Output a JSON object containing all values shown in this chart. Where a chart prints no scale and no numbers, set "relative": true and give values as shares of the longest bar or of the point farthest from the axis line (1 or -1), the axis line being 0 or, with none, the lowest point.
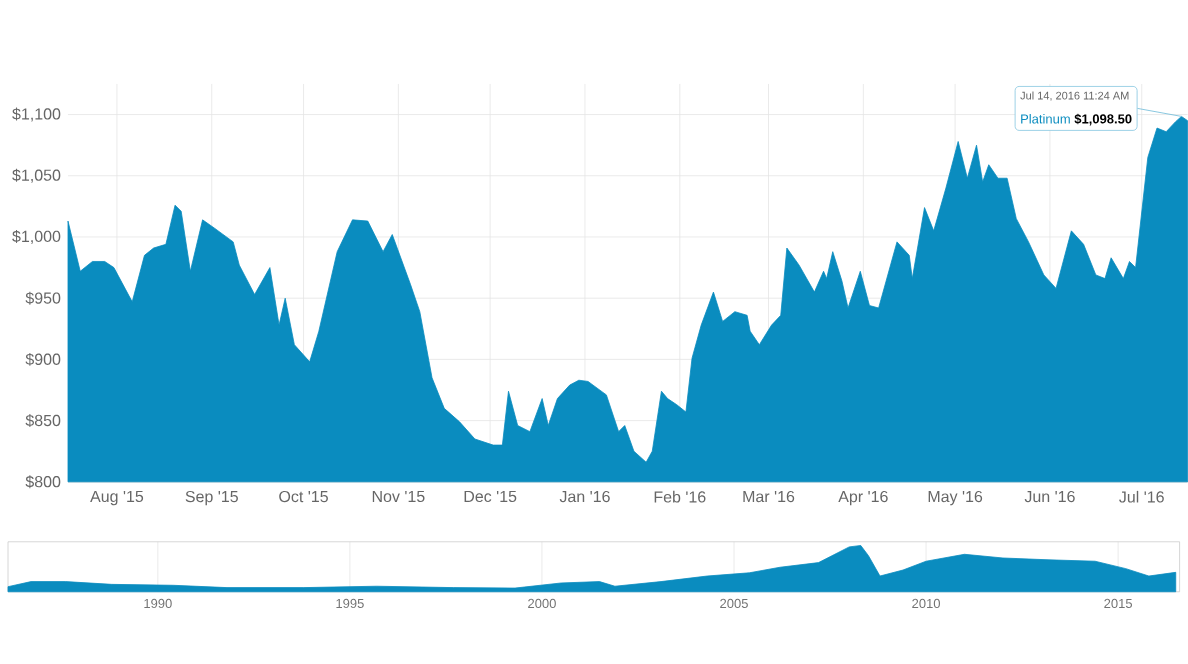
{
  "chart_data": [
    {
      "type": "area",
      "xlim": [
        "2015-07-16",
        "2016-07-16"
      ],
      "ylim": [
        800,
        1125
      ],
      "grid": true,
      "xticks": [
        {
          "value": "2015-08-01",
          "label": "Aug '15"
        },
        {
          "value": "2015-09-01",
          "label": "Sep '15"
        },
        {
          "value": "2015-10-01",
          "label": "Oct '15"
        },
        {
          "value": "2015-11-01",
          "label": "Nov '15"
        },
        {
          "value": "2015-12-01",
          "label": "Dec '15"
        },
        {
          "value": "2016-01-01",
          "label": "Jan '16"
        },
        {
          "value": "2016-02-01",
          "label": "Feb '16"
        },
        {
          "value": "2016-03-01",
          "label": "Mar '16"
        },
        {
          "value": "2016-04-01",
          "label": "Apr '16"
        },
        {
          "value": "2016-05-01",
          "label": "May '16"
        },
        {
          "value": "2016-06-01",
          "label": "Jun '16"
        },
        {
          "value": "2016-07-01",
          "label": "Jul '16"
        }
      ],
      "yticks": [
        {
          "value": 800,
          "label": "$800"
        },
        {
          "value": 850,
          "label": "$850"
        },
        {
          "value": 900,
          "label": "$900"
        },
        {
          "value": 950,
          "label": "$950"
        },
        {
          "value": 1000,
          "label": "$1,000"
        },
        {
          "value": 1050,
          "label": "$1,050"
        },
        {
          "value": 1100,
          "label": "$1,100"
        }
      ],
      "x": [
        "2015-07-16",
        "2015-07-20",
        "2015-07-24",
        "2015-07-28",
        "2015-07-31",
        "2015-08-06",
        "2015-08-10",
        "2015-08-13",
        "2015-08-17",
        "2015-08-20",
        "2015-08-22",
        "2015-08-25",
        "2015-08-29",
        "2015-09-02",
        "2015-09-08",
        "2015-09-10",
        "2015-09-15",
        "2015-09-20",
        "2015-09-23",
        "2015-09-25",
        "2015-09-28",
        "2015-10-03",
        "2015-10-06",
        "2015-10-12",
        "2015-10-17",
        "2015-10-22",
        "2015-10-27",
        "2015-10-30",
        "2015-11-05",
        "2015-11-08",
        "2015-11-12",
        "2015-11-16",
        "2015-11-21",
        "2015-11-26",
        "2015-12-02",
        "2015-12-05",
        "2015-12-07",
        "2015-12-10",
        "2015-12-14",
        "2015-12-18",
        "2015-12-20",
        "2015-12-23",
        "2015-12-27",
        "2015-12-30",
        "2016-01-02",
        "2016-01-08",
        "2016-01-12",
        "2016-01-14",
        "2016-01-17",
        "2016-01-21",
        "2016-01-23",
        "2016-01-26",
        "2016-01-28",
        "2016-01-31",
        "2016-02-03",
        "2016-02-05",
        "2016-02-08",
        "2016-02-12",
        "2016-02-15",
        "2016-02-19",
        "2016-02-23",
        "2016-02-24",
        "2016-02-27",
        "2016-03-02",
        "2016-03-05",
        "2016-03-07",
        "2016-03-11",
        "2016-03-16",
        "2016-03-19",
        "2016-03-20",
        "2016-03-22",
        "2016-03-25",
        "2016-03-27",
        "2016-03-31",
        "2016-04-03",
        "2016-04-06",
        "2016-04-12",
        "2016-04-16",
        "2016-04-17",
        "2016-04-21",
        "2016-04-24",
        "2016-04-28",
        "2016-05-02",
        "2016-05-05",
        "2016-05-08",
        "2016-05-10",
        "2016-05-12",
        "2016-05-15",
        "2016-05-18",
        "2016-05-21",
        "2016-05-25",
        "2016-05-30",
        "2016-06-03",
        "2016-06-08",
        "2016-06-12",
        "2016-06-16",
        "2016-06-19",
        "2016-06-21",
        "2016-06-25",
        "2016-06-27",
        "2016-06-29",
        "2016-07-03",
        "2016-07-06",
        "2016-07-09",
        "2016-07-12",
        "2016-07-14",
        "2016-07-16"
      ],
      "series": [
        {
          "name": "Platinum",
          "color": "#0a8cbf",
          "values": [
            1013,
            972,
            980,
            980,
            975,
            947,
            985,
            991,
            994,
            1026,
            1021,
            972,
            1014,
            1007,
            996,
            977,
            953,
            975,
            928,
            950,
            912,
            898,
            923,
            988,
            1014,
            1013,
            988,
            1002,
            961,
            939,
            885,
            860,
            849,
            835,
            830,
            830,
            874,
            846,
            841,
            868,
            846,
            868,
            879,
            883,
            882,
            871,
            841,
            846,
            825,
            816,
            825,
            874,
            868,
            863,
            857,
            901,
            928,
            955,
            931,
            939,
            936,
            923,
            912,
            928,
            936,
            991,
            977,
            955,
            972,
            966,
            988,
            964,
            942,
            972,
            944,
            942,
            996,
            985,
            966,
            1024,
            1005,
            1040,
            1078,
            1048,
            1075,
            1045,
            1059,
            1048,
            1048,
            1015,
            996,
            969,
            958,
            1005,
            994,
            969,
            966,
            983,
            966,
            980,
            975,
            1065,
            1089,
            1086,
            1094,
            1098.5,
            1095
          ]
        }
      ],
      "annotations": [
        {
          "text": "Jul 14, 2016 11:24 AM",
          "x": "2016-07-14",
          "y": 1098.5
        },
        {
          "text": "$1,098.50",
          "x": "2016-07-14",
          "y": 1098.5
        }
      ]
    },
    {
      "type": "area",
      "relative": true,
      "tick_labels": "x",
      "grid": "x",
      "xlim": [
        1986.1,
        2016.6
      ],
      "xticks": [
        1990,
        1995,
        2000,
        2005,
        2010,
        2015
      ],
      "x": [
        1986.1,
        1986.7,
        1987.6,
        1988.8,
        1990.4,
        1991.8,
        1993.8,
        1995.7,
        1997.7,
        1999.3,
        2000.5,
        2001.5,
        2001.9,
        2003.1,
        2004.3,
        2005.4,
        2006.2,
        2007.2,
        2008.0,
        2008.3,
        2008.5,
        2008.8,
        2009.4,
        2010.0,
        2011.0,
        2012.0,
        2013.2,
        2014.4,
        2015.2,
        2015.8,
        2016.5
      ],
      "series": [
        {
          "color": "#0a8cbf",
          "values": [
            0.11,
            0.22,
            0.22,
            0.16,
            0.14,
            0.09,
            0.09,
            0.12,
            0.09,
            0.08,
            0.19,
            0.22,
            0.12,
            0.22,
            0.34,
            0.41,
            0.53,
            0.63,
            0.97,
            1.0,
            0.78,
            0.34,
            0.47,
            0.66,
            0.81,
            0.73,
            0.69,
            0.66,
            0.5,
            0.34,
            0.42
          ]
        }
      ]
    }
  ]
}
